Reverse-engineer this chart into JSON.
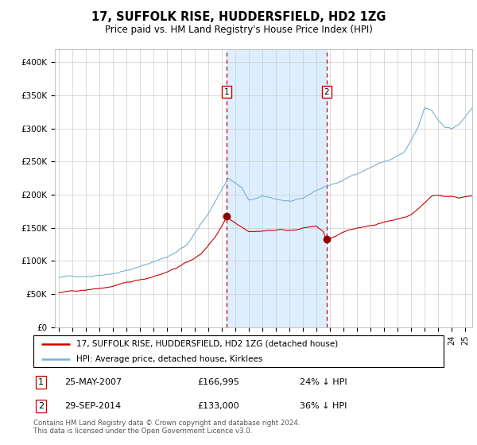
{
  "title": "17, SUFFOLK RISE, HUDDERSFIELD, HD2 1ZG",
  "subtitle": "Price paid vs. HM Land Registry's House Price Index (HPI)",
  "footer": "Contains HM Land Registry data © Crown copyright and database right 2024.\nThis data is licensed under the Open Government Licence v3.0.",
  "legend_line1": "17, SUFFOLK RISE, HUDDERSFIELD, HD2 1ZG (detached house)",
  "legend_line2": "HPI: Average price, detached house, Kirklees",
  "transaction1_date": "25-MAY-2007",
  "transaction1_price": "£166,995",
  "transaction1_hpi": "24% ↓ HPI",
  "transaction2_date": "29-SEP-2014",
  "transaction2_price": "£133,000",
  "transaction2_hpi": "36% ↓ HPI",
  "hpi_color": "#7ab0d4",
  "price_color": "#cc0000",
  "vline_color": "#cc0000",
  "shade_color": "#ddeeff",
  "ylim": [
    0,
    420000
  ],
  "yticks": [
    0,
    50000,
    100000,
    150000,
    200000,
    250000,
    300000,
    350000,
    400000
  ],
  "ytick_labels": [
    "£0",
    "£50K",
    "£100K",
    "£150K",
    "£200K",
    "£250K",
    "£300K",
    "£350K",
    "£400K"
  ],
  "transaction1_x": 2007.38,
  "transaction1_y": 166995,
  "transaction2_x": 2014.75,
  "transaction2_y": 133000,
  "xlim_start": 1994.7,
  "xlim_end": 2025.5
}
